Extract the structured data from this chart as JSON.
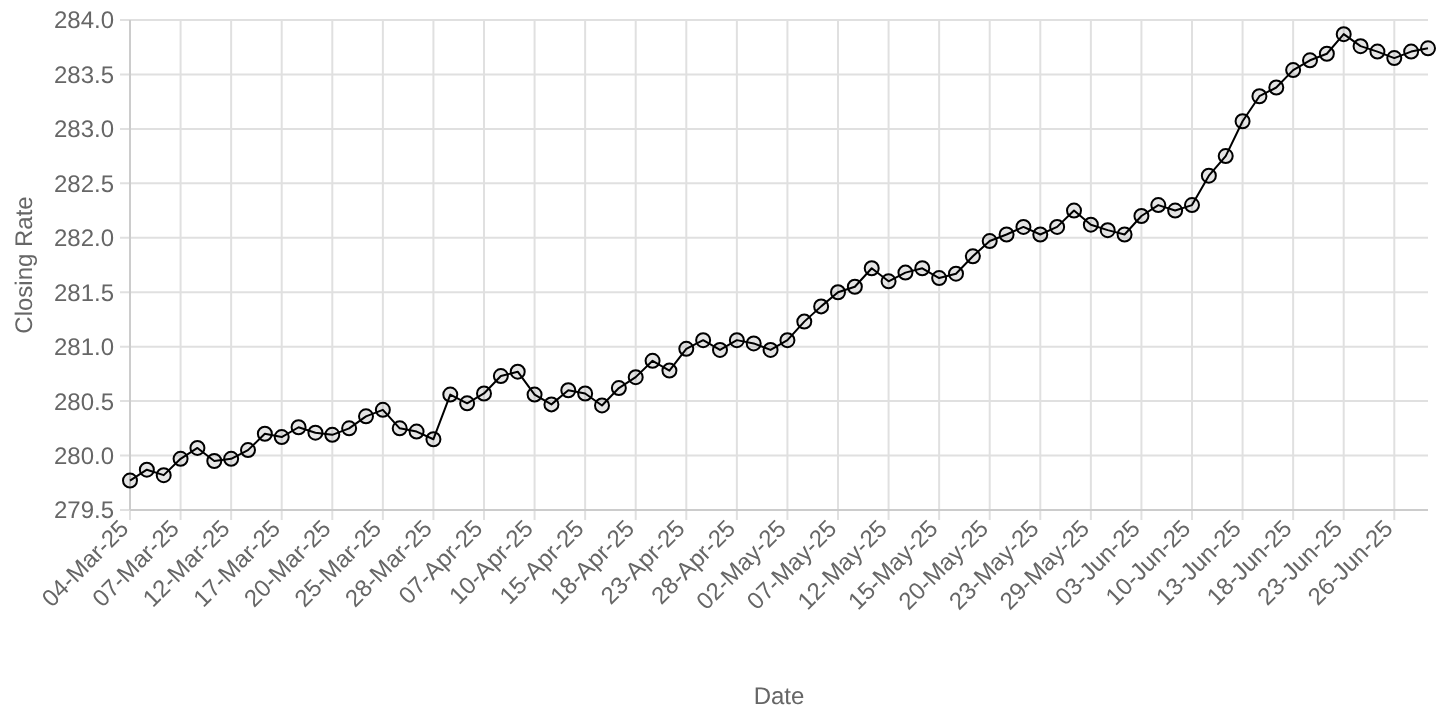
{
  "chart_data": {
    "type": "line",
    "xlabel": "Date",
    "ylabel": "Closing Rate",
    "categories": [
      "04-Mar-25",
      null,
      null,
      "07-Mar-25",
      null,
      null,
      "12-Mar-25",
      null,
      null,
      "17-Mar-25",
      null,
      null,
      "20-Mar-25",
      null,
      null,
      "25-Mar-25",
      null,
      null,
      "28-Mar-25",
      null,
      null,
      "07-Apr-25",
      null,
      null,
      "10-Apr-25",
      null,
      null,
      "15-Apr-25",
      null,
      null,
      "18-Apr-25",
      null,
      null,
      "23-Apr-25",
      null,
      null,
      "28-Apr-25",
      null,
      null,
      "02-May-25",
      null,
      null,
      "07-May-25",
      null,
      null,
      "12-May-25",
      null,
      null,
      "15-May-25",
      null,
      null,
      "20-May-25",
      null,
      null,
      "23-May-25",
      null,
      null,
      "29-May-25",
      null,
      null,
      "03-Jun-25",
      null,
      null,
      "10-Jun-25",
      null,
      null,
      "13-Jun-25",
      null,
      null,
      "18-Jun-25",
      null,
      null,
      "23-Jun-25",
      null,
      null,
      "26-Jun-25",
      null,
      null
    ],
    "series": [
      {
        "color": "#000000",
        "values": [
          279.77,
          279.87,
          279.82,
          279.97,
          280.07,
          279.95,
          279.97,
          280.05,
          280.2,
          280.17,
          280.26,
          280.21,
          280.19,
          280.25,
          280.36,
          280.42,
          280.25,
          280.22,
          280.15,
          280.56,
          280.48,
          280.57,
          280.73,
          280.77,
          280.56,
          280.47,
          280.6,
          280.57,
          280.46,
          280.62,
          280.72,
          280.87,
          280.78,
          280.98,
          281.06,
          280.97,
          281.06,
          281.03,
          280.97,
          281.06,
          281.23,
          281.37,
          281.5,
          281.55,
          281.72,
          281.6,
          281.68,
          281.72,
          281.63,
          281.67,
          281.83,
          281.97,
          282.03,
          282.1,
          282.03,
          282.1,
          282.25,
          282.12,
          282.07,
          282.03,
          282.2,
          282.3,
          282.25,
          282.3,
          282.57,
          282.75,
          283.07,
          283.3,
          283.38,
          283.54,
          283.63,
          283.69,
          283.87,
          283.76,
          283.71,
          283.65,
          283.71,
          283.74
        ]
      }
    ],
    "ylim": [
      279.5,
      284
    ],
    "yticks": [
      {
        "value": 279.5,
        "label": "279.5"
      },
      {
        "value": 280,
        "label": "280.0"
      },
      {
        "value": 280.5,
        "label": "280.5"
      },
      {
        "value": 281,
        "label": "281.0"
      },
      {
        "value": 281.5,
        "label": "281.5"
      },
      {
        "value": 282,
        "label": "282.0"
      },
      {
        "value": 282.5,
        "label": "282.5"
      },
      {
        "value": 283,
        "label": "283.0"
      },
      {
        "value": 283.5,
        "label": "283.5"
      },
      {
        "value": 284,
        "label": "284.0"
      }
    ],
    "grid": true,
    "marker": "circle",
    "line_style": "solid"
  }
}
